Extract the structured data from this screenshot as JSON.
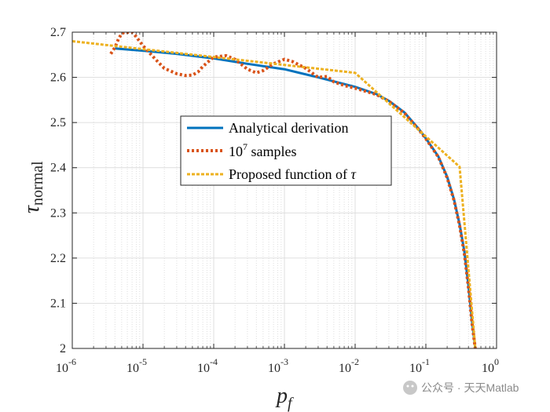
{
  "chart_data": {
    "type": "line",
    "xscale": "log",
    "xlim": [
      1e-06,
      1
    ],
    "ylim": [
      2.0,
      2.7
    ],
    "grid": true,
    "legend_position": "center",
    "xlabel": {
      "main": "p",
      "sub": "f"
    },
    "ylabel": {
      "main": "τ",
      "sub": "normal"
    },
    "x_ticks": [
      {
        "base": "10",
        "exp": "-6"
      },
      {
        "base": "10",
        "exp": "-5"
      },
      {
        "base": "10",
        "exp": "-4"
      },
      {
        "base": "10",
        "exp": "-3"
      },
      {
        "base": "10",
        "exp": "-2"
      },
      {
        "base": "10",
        "exp": "-1"
      },
      {
        "base": "10",
        "exp": "0"
      }
    ],
    "y_ticks": [
      "2",
      "2.1",
      "2.2",
      "2.3",
      "2.4",
      "2.5",
      "2.6",
      "2.7"
    ],
    "series": [
      {
        "name": "Analytical derivation",
        "color": "#0072BD",
        "style": "solid",
        "points": [
          [
            4e-06,
            2.664
          ],
          [
            1e-05,
            2.659
          ],
          [
            3e-05,
            2.652
          ],
          [
            0.0001,
            2.642
          ],
          [
            0.0003,
            2.63
          ],
          [
            0.001,
            2.618
          ],
          [
            0.003,
            2.6
          ],
          [
            0.01,
            2.579
          ],
          [
            0.02,
            2.563
          ],
          [
            0.03,
            2.548
          ],
          [
            0.05,
            2.522
          ],
          [
            0.08,
            2.485
          ],
          [
            0.1,
            2.465
          ],
          [
            0.15,
            2.425
          ],
          [
            0.2,
            2.38
          ],
          [
            0.25,
            2.33
          ],
          [
            0.3,
            2.275
          ],
          [
            0.35,
            2.215
          ],
          [
            0.4,
            2.14
          ],
          [
            0.45,
            2.06
          ],
          [
            0.5,
            2.0
          ]
        ]
      },
      {
        "name": "10^7 samples",
        "label_base": "10",
        "label_exp": "7",
        "label_rest": " samples",
        "color": "#D95319",
        "style": "dotted",
        "points": [
          [
            3.5e-06,
            2.652
          ],
          [
            4e-06,
            2.666
          ],
          [
            4.5e-06,
            2.685
          ],
          [
            5e-06,
            2.697
          ],
          [
            5.5e-06,
            2.7
          ],
          [
            7e-06,
            2.7
          ],
          [
            8e-06,
            2.69
          ],
          [
            1e-05,
            2.67
          ],
          [
            1.5e-05,
            2.64
          ],
          [
            2e-05,
            2.62
          ],
          [
            3e-05,
            2.608
          ],
          [
            4e-05,
            2.604
          ],
          [
            5e-05,
            2.605
          ],
          [
            6e-05,
            2.612
          ],
          [
            7e-05,
            2.624
          ],
          [
            0.0001,
            2.645
          ],
          [
            0.00015,
            2.648
          ],
          [
            0.0002,
            2.64
          ],
          [
            0.0003,
            2.618
          ],
          [
            0.0004,
            2.61
          ],
          [
            0.0005,
            2.615
          ],
          [
            0.0007,
            2.63
          ],
          [
            0.001,
            2.64
          ],
          [
            0.0013,
            2.635
          ],
          [
            0.002,
            2.62
          ],
          [
            0.003,
            2.6
          ],
          [
            0.004,
            2.602
          ],
          [
            0.005,
            2.59
          ],
          [
            0.007,
            2.582
          ],
          [
            0.01,
            2.576
          ],
          [
            0.02,
            2.562
          ],
          [
            0.03,
            2.547
          ],
          [
            0.05,
            2.521
          ],
          [
            0.08,
            2.484
          ],
          [
            0.1,
            2.464
          ],
          [
            0.15,
            2.424
          ],
          [
            0.2,
            2.378
          ],
          [
            0.25,
            2.328
          ],
          [
            0.3,
            2.272
          ],
          [
            0.35,
            2.21
          ],
          [
            0.4,
            2.135
          ],
          [
            0.45,
            2.055
          ],
          [
            0.5,
            2.0
          ]
        ]
      },
      {
        "name": "Proposed function of τ",
        "label_rest": "Proposed function of ",
        "label_symbol": "τ",
        "color": "#EDB120",
        "style": "dashed",
        "points": [
          [
            1e-06,
            2.68
          ],
          [
            0.01,
            2.61
          ],
          [
            0.3,
            2.402
          ],
          [
            0.5,
            2.0
          ]
        ]
      }
    ]
  },
  "watermark": {
    "text": "公众号 · 天天Matlab"
  }
}
